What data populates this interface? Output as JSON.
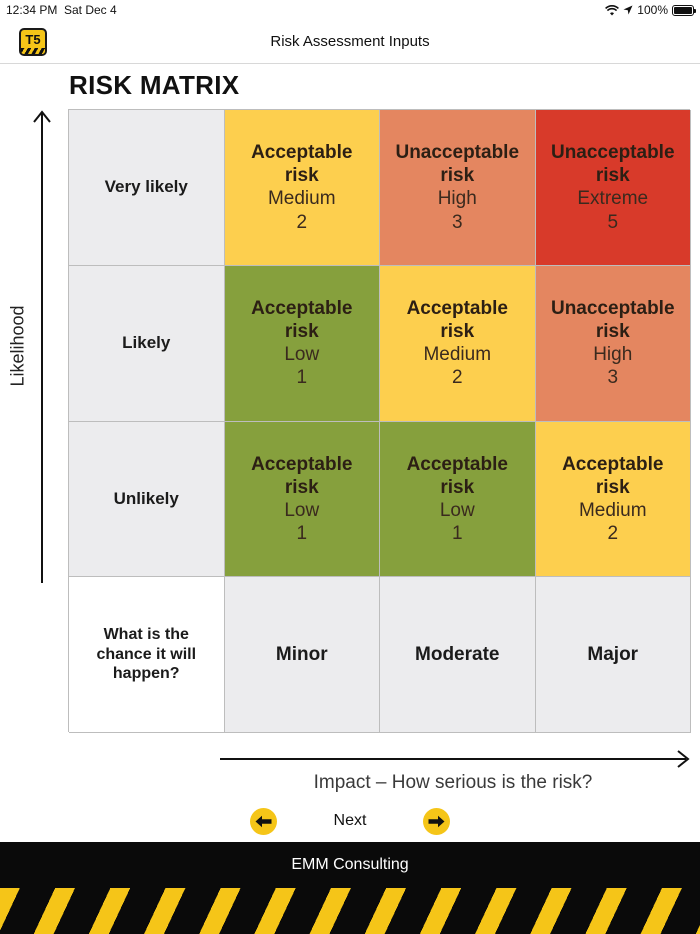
{
  "status_bar": {
    "time": "12:34 PM",
    "date": "Sat Dec 4",
    "battery": "100%"
  },
  "nav": {
    "title": "Risk Assessment Inputs",
    "logo_text": "T5"
  },
  "matrix": {
    "title": "RISK MATRIX",
    "y_axis_label": "Likelihood",
    "x_axis_label": "Impact – How serious is the risk?",
    "corner_label": "What is the chance it will happen?",
    "impact_labels": [
      "Minor",
      "Moderate",
      "Major"
    ],
    "rows": [
      {
        "likelihood": "Very likely",
        "cells": [
          {
            "status": "Acceptable risk",
            "level": "Medium",
            "score": "2",
            "color": "#fdcf4e"
          },
          {
            "status": "Unacceptable risk",
            "level": "High",
            "score": "3",
            "color": "#e48660"
          },
          {
            "status": "Unacceptable risk",
            "level": "Extreme",
            "score": "5",
            "color": "#d83a2a"
          }
        ]
      },
      {
        "likelihood": "Likely",
        "cells": [
          {
            "status": "Acceptable risk",
            "level": "Low",
            "score": "1",
            "color": "#86a03d"
          },
          {
            "status": "Acceptable risk",
            "level": "Medium",
            "score": "2",
            "color": "#fdcf4e"
          },
          {
            "status": "Unacceptable risk",
            "level": "High",
            "score": "3",
            "color": "#e48660"
          }
        ]
      },
      {
        "likelihood": "Unlikely",
        "cells": [
          {
            "status": "Acceptable risk",
            "level": "Low",
            "score": "1",
            "color": "#86a03d"
          },
          {
            "status": "Acceptable risk",
            "level": "Low",
            "score": "1",
            "color": "#86a03d"
          },
          {
            "status": "Acceptable risk",
            "level": "Medium",
            "score": "2",
            "color": "#fdcf4e"
          }
        ]
      }
    ]
  },
  "controls": {
    "next_label": "Next",
    "prev_icon": "arrow-left-icon",
    "next_icon": "arrow-right-icon"
  },
  "footer": {
    "text": "EMM Consulting"
  },
  "colors": {
    "accent": "#f5c518",
    "footer_bg": "#0a0a0a"
  }
}
